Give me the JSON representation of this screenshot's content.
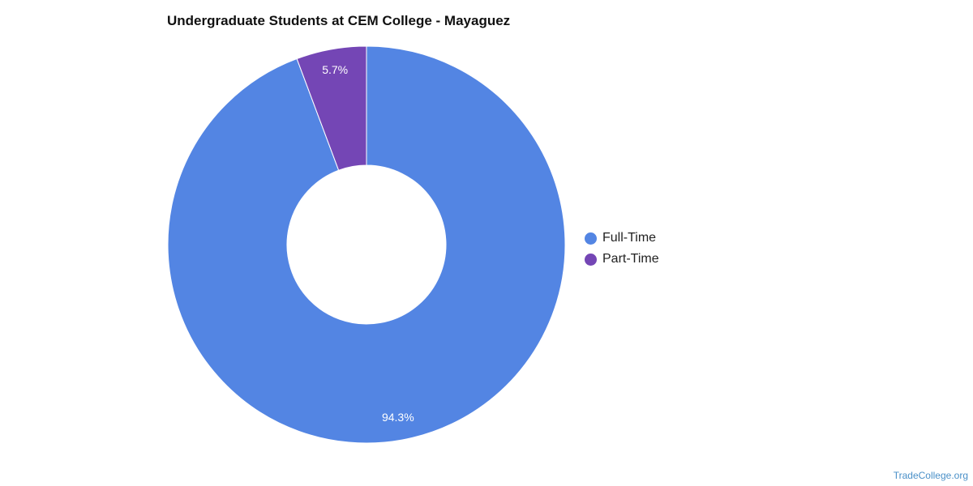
{
  "chart_data": {
    "type": "pie",
    "variant": "donut",
    "title": "Undergraduate Students at CEM College - Mayaguez",
    "categories": [
      "Full-Time",
      "Part-Time"
    ],
    "values": [
      94.3,
      5.7
    ],
    "value_labels": [
      "94.3%",
      "5.7%"
    ],
    "colors": [
      "#5385e3",
      "#7446b5"
    ],
    "legend_position": "right",
    "start_angle": "top",
    "direction": "clockwise"
  },
  "watermark": "TradeCollege.org"
}
